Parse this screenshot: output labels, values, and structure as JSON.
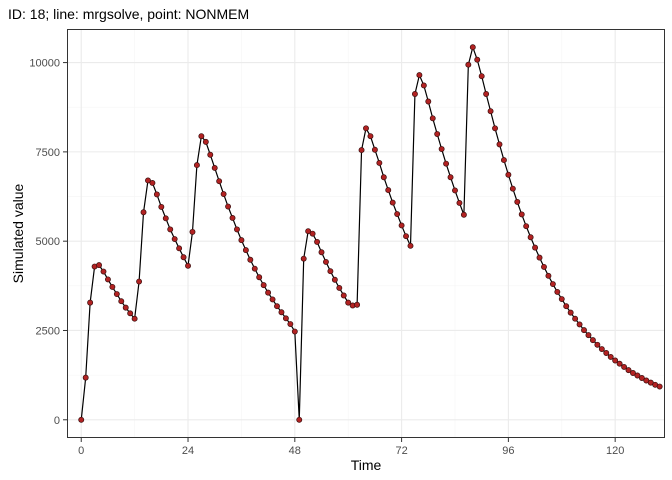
{
  "chart_data": {
    "type": "line",
    "title": "ID: 18; line: mrgsolve, point: NONMEM",
    "xlabel": "Time",
    "ylabel": "Simulated value",
    "xlim": [
      -3.2,
      131.2
    ],
    "ylim": [
      -510,
      10940
    ],
    "x_ticks": [
      0,
      24,
      48,
      72,
      96,
      120
    ],
    "y_ticks": [
      0,
      2500,
      5000,
      7500,
      10000
    ],
    "y_tick_labels": [
      "0",
      "2500",
      "5000",
      "7500",
      "10000"
    ],
    "grid": true,
    "colors": {
      "line": "#000000",
      "point_fill": "#b22222",
      "point_stroke": "#3a0f0f",
      "grid_major": "#ebebeb",
      "grid_minor": "#f5f5f5",
      "panel_border": "#333333"
    },
    "series": [
      {
        "x": [
          0,
          1,
          2,
          3,
          4,
          5,
          6,
          7,
          8,
          9,
          10,
          11,
          12,
          13,
          14,
          15,
          16,
          17,
          18,
          19,
          20,
          21,
          22,
          23,
          24,
          25,
          26,
          27,
          28,
          29,
          30,
          31,
          32,
          33,
          34,
          35,
          36,
          37,
          38,
          39,
          40,
          41,
          42,
          43,
          44,
          45,
          46,
          47,
          48,
          49,
          50,
          51,
          52,
          53,
          54,
          55,
          56,
          57,
          58,
          59,
          60,
          61,
          62,
          63,
          64,
          65,
          66,
          67,
          68,
          69,
          70,
          71,
          72,
          73,
          74,
          75,
          76,
          77,
          78,
          79,
          80,
          81,
          82,
          83,
          84,
          85,
          86,
          87,
          88,
          89,
          90,
          91,
          92,
          93,
          94,
          95,
          96,
          97,
          98,
          99,
          100,
          101,
          102,
          103,
          104,
          105,
          106,
          107,
          108,
          109,
          110,
          111,
          112,
          113,
          114,
          115,
          116,
          117,
          118,
          119,
          120,
          121,
          122,
          123,
          124,
          125,
          126,
          127,
          128,
          129,
          130
        ],
        "y": [
          0,
          1180,
          3280,
          4290,
          4330,
          4150,
          3930,
          3720,
          3520,
          3320,
          3140,
          2980,
          2830,
          3870,
          5810,
          6700,
          6630,
          6310,
          5960,
          5640,
          5330,
          5060,
          4800,
          4550,
          4310,
          5260,
          7130,
          7940,
          7780,
          7420,
          7050,
          6680,
          6320,
          5970,
          5650,
          5330,
          5030,
          4750,
          4480,
          4230,
          3990,
          3770,
          3560,
          3370,
          3180,
          3010,
          2840,
          2680,
          2470,
          0,
          4510,
          5280,
          5210,
          4980,
          4690,
          4420,
          4160,
          3920,
          3690,
          3480,
          3280,
          3200,
          3220,
          7550,
          8160,
          7940,
          7560,
          7190,
          6790,
          6430,
          6080,
          5760,
          5440,
          5140,
          4870,
          9120,
          9650,
          9360,
          8910,
          8440,
          8000,
          7580,
          7170,
          6790,
          6420,
          6070,
          5740,
          9940,
          10430,
          10080,
          9620,
          9120,
          8640,
          8160,
          7710,
          7270,
          6860,
          6470,
          6100,
          5750,
          5420,
          5110,
          4820,
          4540,
          4280,
          4030,
          3800,
          3580,
          3380,
          3180,
          3000,
          2830,
          2670,
          2510,
          2370,
          2230,
          2100,
          1980,
          1870,
          1760,
          1660,
          1570,
          1480,
          1390,
          1310,
          1240,
          1170,
          1100,
          1040,
          980,
          930
        ]
      }
    ]
  }
}
